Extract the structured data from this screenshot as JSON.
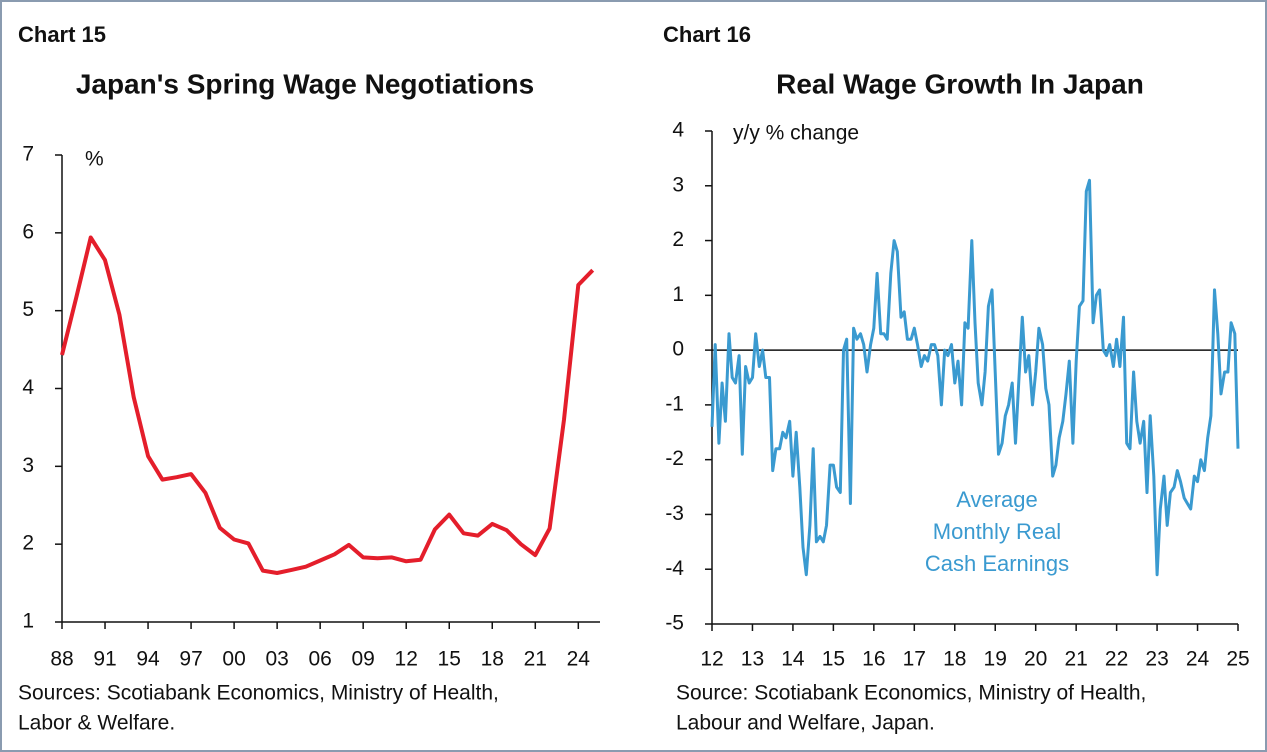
{
  "chart_data": [
    {
      "type": "line",
      "label": "Chart 15",
      "title": "Japan's Spring Wage Negotiations",
      "unit": "%",
      "x": [
        1988,
        1989,
        1990,
        1991,
        1992,
        1993,
        1994,
        1995,
        1996,
        1997,
        1998,
        1999,
        2000,
        2001,
        2002,
        2003,
        2004,
        2005,
        2006,
        2007,
        2008,
        2009,
        2010,
        2011,
        2012,
        2013,
        2014,
        2015,
        2016,
        2017,
        2018,
        2019,
        2020,
        2021,
        2022,
        2023,
        2024,
        2025
      ],
      "values": [
        4.43,
        5.17,
        5.94,
        5.65,
        4.95,
        3.89,
        3.13,
        2.83,
        2.86,
        2.9,
        2.66,
        2.21,
        2.06,
        2.01,
        1.66,
        1.63,
        1.67,
        1.71,
        1.79,
        1.87,
        1.99,
        1.83,
        1.82,
        1.83,
        1.78,
        1.8,
        2.19,
        2.38,
        2.14,
        2.11,
        2.26,
        2.18,
        2.0,
        1.86,
        2.2,
        3.6,
        5.33,
        5.52
      ],
      "color": "#e41e2b",
      "xlim": [
        1988,
        2026
      ],
      "ylim": [
        1,
        7
      ],
      "xticks": [
        {
          "value": 1988,
          "label": "88"
        },
        {
          "value": 1991,
          "label": "91"
        },
        {
          "value": 1994,
          "label": "94"
        },
        {
          "value": 1997,
          "label": "97"
        },
        {
          "value": 2000,
          "label": "00"
        },
        {
          "value": 2003,
          "label": "03"
        },
        {
          "value": 2006,
          "label": "06"
        },
        {
          "value": 2009,
          "label": "09"
        },
        {
          "value": 2012,
          "label": "12"
        },
        {
          "value": 2015,
          "label": "15"
        },
        {
          "value": 2018,
          "label": "18"
        },
        {
          "value": 2021,
          "label": "21"
        },
        {
          "value": 2024,
          "label": "24"
        }
      ],
      "yticks": [
        1,
        2,
        3,
        4,
        5,
        6,
        7
      ],
      "source": [
        "Sources: Scotiabank Economics, Ministry of Health,",
        "Labor & Welfare."
      ]
    },
    {
      "type": "line",
      "label": "Chart 16",
      "title": "Real Wage Growth In Japan",
      "unit": "y/y % change",
      "x": [
        12,
        12.08,
        12.17,
        12.25,
        12.33,
        12.42,
        12.5,
        12.58,
        12.67,
        12.75,
        12.83,
        12.92,
        13,
        13.08,
        13.17,
        13.25,
        13.33,
        13.42,
        13.5,
        13.58,
        13.67,
        13.75,
        13.83,
        13.92,
        14,
        14.08,
        14.17,
        14.25,
        14.33,
        14.42,
        14.5,
        14.58,
        14.67,
        14.75,
        14.83,
        14.92,
        15,
        15.08,
        15.17,
        15.25,
        15.33,
        15.42,
        15.5,
        15.58,
        15.67,
        15.75,
        15.83,
        15.92,
        16,
        16.08,
        16.17,
        16.25,
        16.33,
        16.42,
        16.5,
        16.58,
        16.67,
        16.75,
        16.83,
        16.92,
        17,
        17.08,
        17.17,
        17.25,
        17.33,
        17.42,
        17.5,
        17.58,
        17.67,
        17.75,
        17.83,
        17.92,
        18,
        18.08,
        18.17,
        18.25,
        18.33,
        18.42,
        18.5,
        18.58,
        18.67,
        18.75,
        18.83,
        18.92,
        19,
        19.08,
        19.17,
        19.25,
        19.33,
        19.42,
        19.5,
        19.58,
        19.67,
        19.75,
        19.83,
        19.92,
        20,
        20.08,
        20.17,
        20.25,
        20.33,
        20.42,
        20.5,
        20.58,
        20.67,
        20.75,
        20.83,
        20.92,
        21,
        21.08,
        21.17,
        21.25,
        21.33,
        21.42,
        21.5,
        21.58,
        21.67,
        21.75,
        21.83,
        21.92,
        22,
        22.08,
        22.17,
        22.25,
        22.33,
        22.42,
        22.5,
        22.58,
        22.67,
        22.75,
        22.83,
        22.92,
        23,
        23.08,
        23.17,
        23.25,
        23.33,
        23.42,
        23.5,
        23.58,
        23.67,
        23.75,
        23.83,
        23.92,
        24,
        24.08,
        24.17,
        24.25,
        24.33,
        24.42,
        24.5,
        24.58,
        24.67,
        24.75,
        24.83,
        24.92,
        25
      ],
      "values": [
        -1.4,
        0.1,
        -1.7,
        -0.6,
        -1.3,
        0.3,
        -0.5,
        -0.6,
        -0.1,
        -1.9,
        -0.3,
        -0.6,
        -0.5,
        0.3,
        -0.3,
        0,
        -0.5,
        -0.5,
        -2.2,
        -1.8,
        -1.8,
        -1.5,
        -1.6,
        -1.3,
        -2.3,
        -1.5,
        -2.5,
        -3.6,
        -4.1,
        -3.2,
        -1.8,
        -3.5,
        -3.4,
        -3.5,
        -3.2,
        -2.1,
        -2.1,
        -2.5,
        -2.6,
        0,
        0.2,
        -2.8,
        0.4,
        0.2,
        0.3,
        0.1,
        -0.4,
        0.1,
        0.4,
        1.4,
        0.3,
        0.3,
        0.2,
        1.4,
        2.0,
        1.8,
        0.6,
        0.7,
        0.2,
        0.2,
        0.4,
        0.1,
        -0.3,
        -0.1,
        -0.2,
        0.1,
        0.1,
        -0.1,
        -1.0,
        0,
        -0.1,
        0.1,
        -0.6,
        -0.2,
        -1.0,
        0.5,
        0.4,
        2.0,
        0.5,
        -0.6,
        -1.0,
        -0.4,
        0.8,
        1.1,
        -0.4,
        -1.9,
        -1.7,
        -1.2,
        -1.0,
        -0.6,
        -1.7,
        -0.6,
        0.6,
        -0.4,
        -0.1,
        -1.0,
        -0.4,
        0.4,
        0.1,
        -0.7,
        -1.0,
        -2.3,
        -2.1,
        -1.6,
        -1.3,
        -0.8,
        -0.2,
        -1.7,
        -0.2,
        0.8,
        0.9,
        2.9,
        3.1,
        0.5,
        1.0,
        1.1,
        0,
        -0.1,
        0.1,
        -0.3,
        0.2,
        -0.3,
        0.6,
        -1.7,
        -1.8,
        -0.4,
        -1.3,
        -1.7,
        -1.3,
        -2.6,
        -1.2,
        -2.3,
        -4.1,
        -2.9,
        -2.3,
        -3.2,
        -2.6,
        -2.5,
        -2.2,
        -2.4,
        -2.7,
        -2.8,
        -2.9,
        -2.3,
        -2.4,
        -2.0,
        -2.2,
        -1.6,
        -1.2,
        1.1,
        0.3,
        -0.8,
        -0.4,
        -0.4,
        0.5,
        0.3,
        -1.8
      ],
      "color": "#3a9ad0",
      "xlim": [
        12,
        25
      ],
      "ylim": [
        -5,
        4
      ],
      "xticks": [
        12,
        13,
        14,
        15,
        16,
        17,
        18,
        19,
        20,
        21,
        22,
        23,
        24,
        25
      ],
      "yticks": [
        -5,
        -4,
        -3,
        -2,
        -1,
        0,
        1,
        2,
        3,
        4
      ],
      "reference_line": 0,
      "annotation": [
        "Average",
        "Monthly Real",
        "Cash Earnings"
      ],
      "source": [
        "Source: Scotiabank Economics, Ministry of Health,",
        "Labour and Welfare, Japan."
      ]
    }
  ]
}
